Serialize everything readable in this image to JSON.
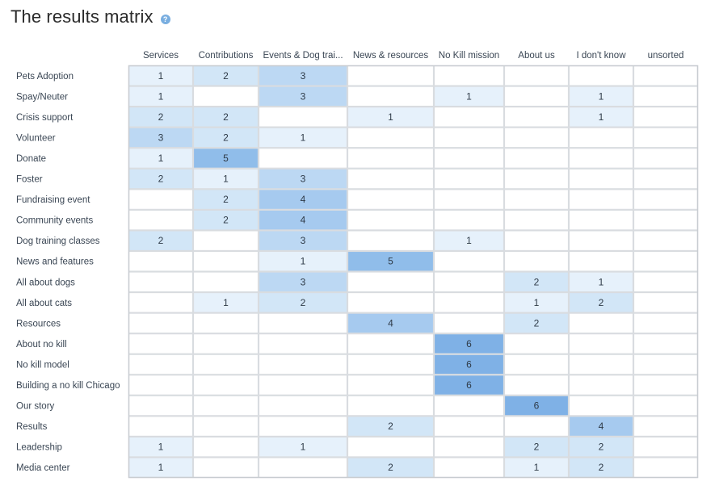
{
  "header": {
    "title": "The results matrix",
    "help_icon": "question-circle-icon",
    "help_glyph": "?"
  },
  "colors": {
    "grid": "#d9dce0",
    "outer_border": "#c8ccd1",
    "text": "#3a4654",
    "scale": [
      "#e6f1fb",
      "#d2e6f7",
      "#bcd8f3",
      "#a6caef",
      "#90bdea",
      "#7fb1e6"
    ]
  },
  "chart_data": {
    "type": "heatmap",
    "title": "The results matrix",
    "columns": [
      "Services",
      "Contributions",
      "Events & Dog trai...",
      "News & resources",
      "No Kill mission",
      "About us",
      "I don't know",
      "unsorted"
    ],
    "rows": [
      "Pets Adoption",
      "Spay/Neuter",
      "Crisis support",
      "Volunteer",
      "Donate",
      "Foster",
      "Fundraising event",
      "Community events",
      "Dog training classes",
      "News and features",
      "All about dogs",
      "All about cats",
      "Resources",
      "About no kill",
      "No kill model",
      "Building a no kill Chicago",
      "Our story",
      "Results",
      "Leadership",
      "Media center"
    ],
    "values": [
      [
        1,
        2,
        3,
        null,
        null,
        null,
        null,
        null
      ],
      [
        1,
        null,
        3,
        null,
        1,
        null,
        1,
        null
      ],
      [
        2,
        2,
        null,
        1,
        null,
        null,
        1,
        null
      ],
      [
        3,
        2,
        1,
        null,
        null,
        null,
        null,
        null
      ],
      [
        1,
        5,
        null,
        null,
        null,
        null,
        null,
        null
      ],
      [
        2,
        1,
        3,
        null,
        null,
        null,
        null,
        null
      ],
      [
        null,
        2,
        4,
        null,
        null,
        null,
        null,
        null
      ],
      [
        null,
        2,
        4,
        null,
        null,
        null,
        null,
        null
      ],
      [
        2,
        null,
        3,
        null,
        1,
        null,
        null,
        null
      ],
      [
        null,
        null,
        1,
        5,
        null,
        null,
        null,
        null
      ],
      [
        null,
        null,
        3,
        null,
        null,
        2,
        1,
        null
      ],
      [
        null,
        1,
        2,
        null,
        null,
        1,
        2,
        null
      ],
      [
        null,
        null,
        null,
        4,
        null,
        2,
        null,
        null
      ],
      [
        null,
        null,
        null,
        null,
        6,
        null,
        null,
        null
      ],
      [
        null,
        null,
        null,
        null,
        6,
        null,
        null,
        null
      ],
      [
        null,
        null,
        null,
        null,
        6,
        null,
        null,
        null
      ],
      [
        null,
        null,
        null,
        null,
        null,
        6,
        null,
        null
      ],
      [
        null,
        null,
        null,
        2,
        null,
        null,
        4,
        null
      ],
      [
        1,
        null,
        1,
        null,
        null,
        2,
        2,
        null
      ],
      [
        1,
        null,
        null,
        2,
        null,
        1,
        2,
        null
      ]
    ]
  }
}
